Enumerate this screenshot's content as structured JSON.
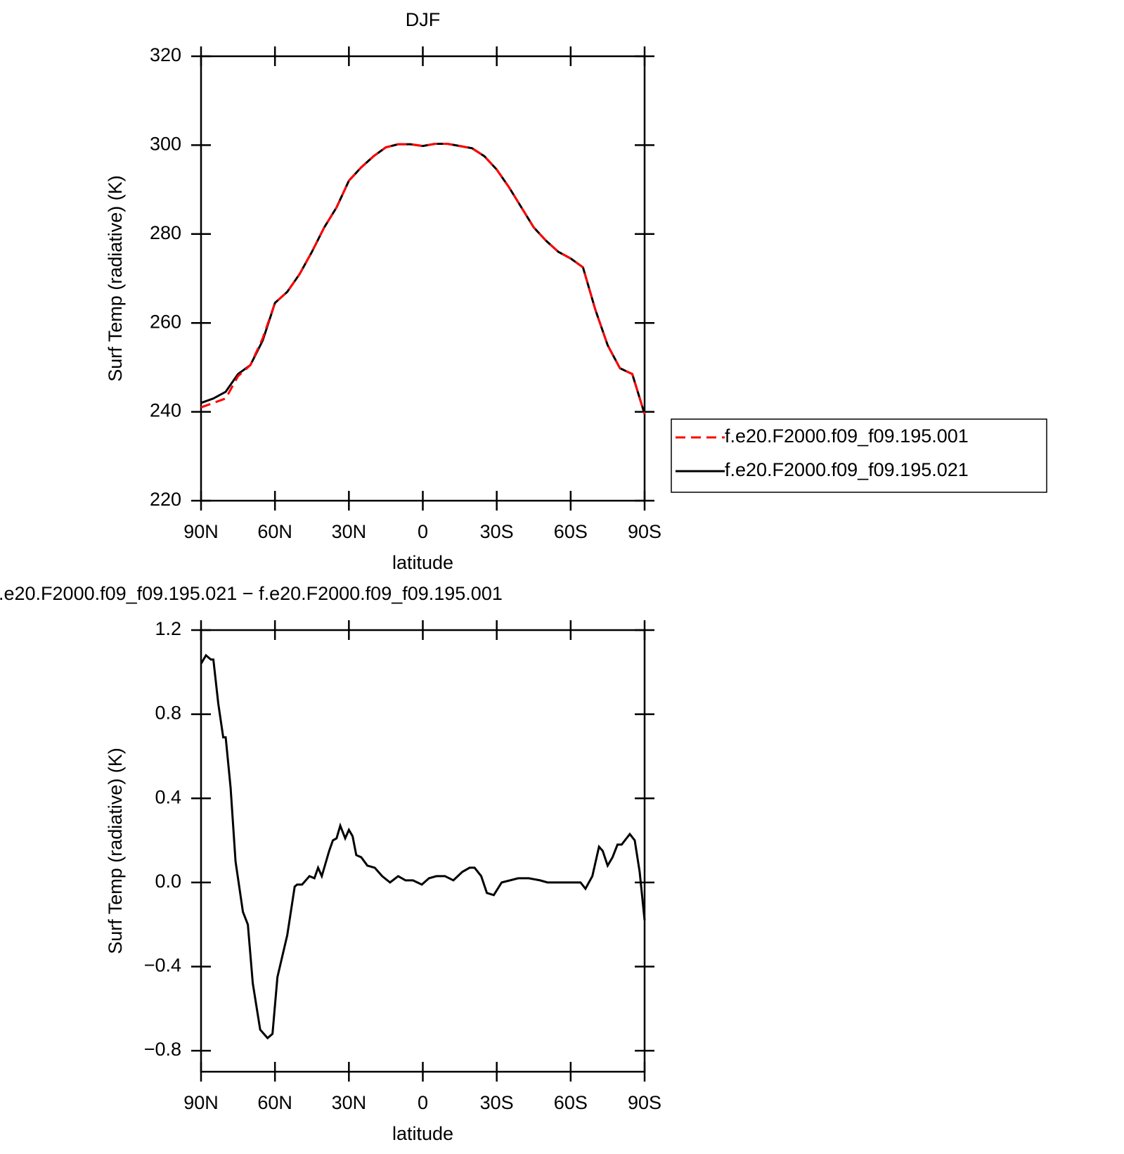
{
  "chart_data": [
    {
      "type": "line",
      "title": "DJF",
      "x_label": "latitude",
      "y_label": "Surf Temp (radiative) (K)",
      "x": [
        90,
        85,
        80,
        75,
        70,
        65,
        60,
        55,
        50,
        45,
        40,
        35,
        30,
        25,
        20,
        15,
        10,
        5,
        0,
        -5,
        -10,
        -15,
        -20,
        -25,
        -30,
        -35,
        -40,
        -45,
        -50,
        -55,
        -60,
        -65,
        -70,
        -75,
        -80,
        -85,
        -90
      ],
      "xlim": [
        90,
        -90
      ],
      "xticks": [
        {
          "value": 90,
          "label": "90N"
        },
        {
          "value": 60,
          "label": "60N"
        },
        {
          "value": 30,
          "label": "30N"
        },
        0,
        {
          "value": -30,
          "label": "30S"
        },
        {
          "value": -60,
          "label": "60S"
        },
        {
          "value": -90,
          "label": "90S"
        }
      ],
      "ylim": [
        220,
        320
      ],
      "yticks": [
        220,
        240,
        260,
        280,
        300,
        320
      ],
      "legend": "right",
      "series": [
        {
          "name": "f.e20.F2000.f09_f09.195.001",
          "color": "#ff0000",
          "dashed": true,
          "values": [
            241,
            242,
            243,
            248,
            250.5,
            256.5,
            264.5,
            267,
            271,
            276,
            281.5,
            286,
            292,
            295,
            297.5,
            299.5,
            300.2,
            300.2,
            299.8,
            300.3,
            300.3,
            299.8,
            299.3,
            297.5,
            294.5,
            290.5,
            286,
            281.5,
            278.5,
            276,
            274.5,
            272.5,
            263,
            255,
            249.8,
            248.5,
            239.5
          ]
        },
        {
          "name": "f.e20.F2000.f09_f09.195.021",
          "color": "#000000",
          "dashed": false,
          "values": [
            242,
            243,
            244.5,
            248.5,
            250.5,
            256,
            264.5,
            267,
            271,
            276,
            281.5,
            286,
            292,
            295,
            297.5,
            299.5,
            300.2,
            300.2,
            299.8,
            300.3,
            300.3,
            299.8,
            299.3,
            297.5,
            294.5,
            290.5,
            286,
            281.5,
            278.5,
            276,
            274.5,
            272.5,
            263,
            255,
            249.8,
            248.5,
            239.5
          ]
        }
      ]
    },
    {
      "type": "line",
      "title": ".e20.F2000.f09_f09.195.021 − f.e20.F2000.f09_f09.195.001",
      "x_label": "latitude",
      "y_label": "Surf Temp (radiative) (K)",
      "x": [
        90,
        88,
        86,
        85,
        83,
        81,
        80,
        78,
        76,
        73,
        71,
        69,
        66,
        63,
        61,
        59,
        57,
        55,
        52,
        51,
        49,
        46,
        44,
        42.5,
        41,
        38,
        36.5,
        35,
        33.5,
        31.5,
        30,
        28.5,
        27,
        25,
        22.5,
        19.5,
        16.5,
        13.3,
        10,
        7,
        4,
        0.4,
        -2.5,
        -5.5,
        -9,
        -12.4,
        -16,
        -19,
        -21,
        -23.7,
        -26,
        -28.8,
        -32,
        -35.4,
        -38.7,
        -43,
        -47.6,
        -50.6,
        -58,
        -64,
        -66,
        -68.8,
        -71.5,
        -73,
        -75,
        -77,
        -79,
        -80.7,
        -82,
        -84,
        -86,
        -88,
        -90
      ],
      "xlim": [
        90,
        -90
      ],
      "xticks": [
        {
          "value": 90,
          "label": "90N"
        },
        {
          "value": 60,
          "label": "60N"
        },
        {
          "value": 30,
          "label": "30N"
        },
        0,
        {
          "value": -30,
          "label": "30S"
        },
        {
          "value": -60,
          "label": "60S"
        },
        {
          "value": -90,
          "label": "90S"
        }
      ],
      "ylim": [
        -0.9,
        1.2
      ],
      "yticks": [
        {
          "value": -0.8,
          "label": "−0.8"
        },
        {
          "value": -0.4,
          "label": "−0.4"
        },
        {
          "value": 0,
          "label": "0.0"
        },
        0.4,
        0.8,
        1.2
      ],
      "series": [
        {
          "color": "#000000",
          "values": [
            1.04,
            1.08,
            1.06,
            1.06,
            0.85,
            0.69,
            0.69,
            0.45,
            0.1,
            -0.14,
            -0.2,
            -0.48,
            -0.7,
            -0.74,
            -0.72,
            -0.45,
            -0.35,
            -0.25,
            -0.02,
            -0.01,
            -0.01,
            0.03,
            0.02,
            0.07,
            0.03,
            0.15,
            0.2,
            0.21,
            0.27,
            0.21,
            0.25,
            0.22,
            0.13,
            0.12,
            0.08,
            0.07,
            0.03,
            0,
            0.03,
            0.01,
            0.01,
            -0.01,
            0.02,
            0.03,
            0.03,
            0.01,
            0.05,
            0.07,
            0.07,
            0.03,
            -0.05,
            -0.06,
            0,
            0.01,
            0.02,
            0.02,
            0.01,
            0,
            0,
            0,
            -0.03,
            0.03,
            0.17,
            0.15,
            0.08,
            0.12,
            0.18,
            0.18,
            0.2,
            0.23,
            0.2,
            0.05,
            -0.18
          ]
        }
      ]
    }
  ]
}
